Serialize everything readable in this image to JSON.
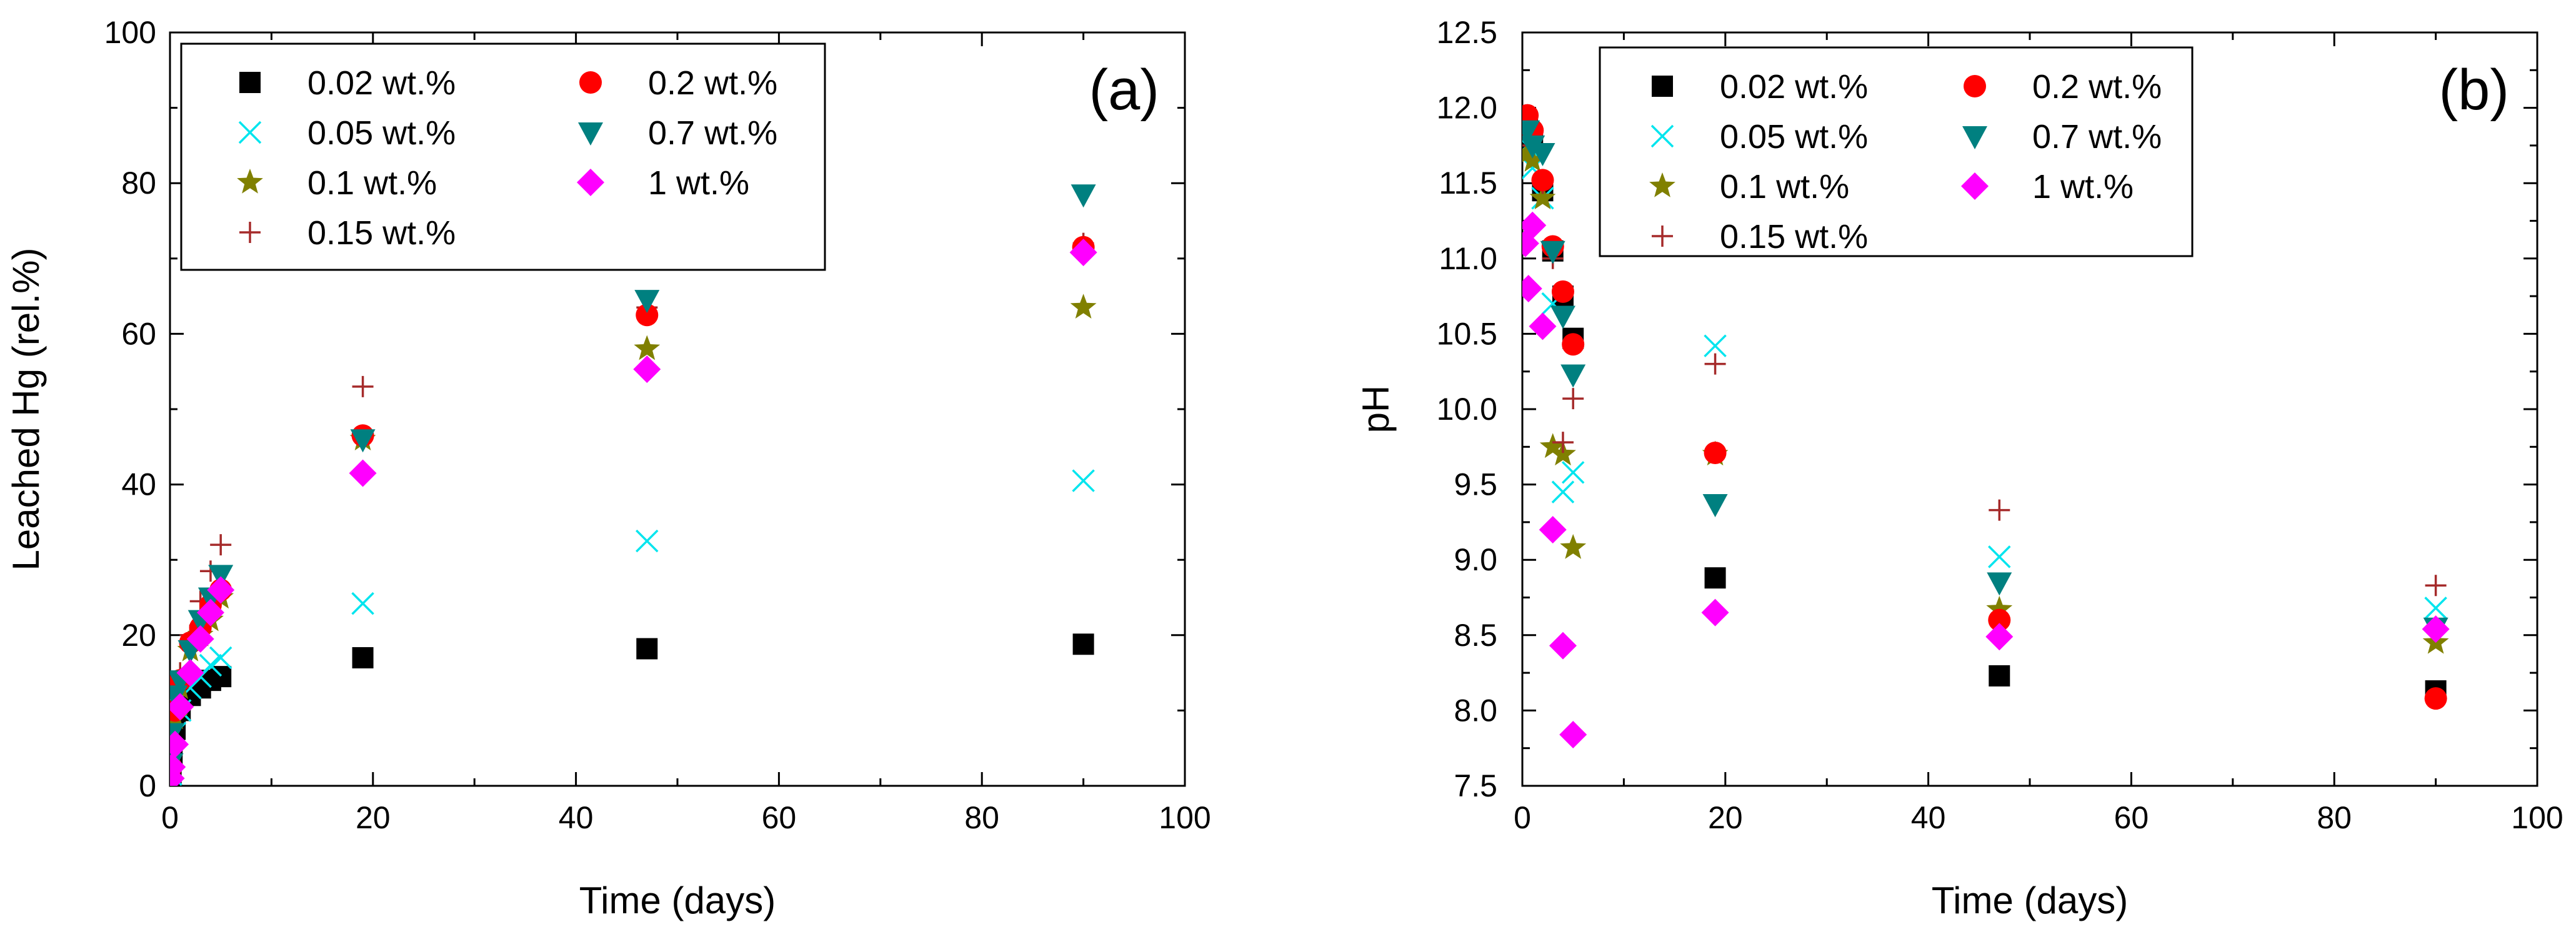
{
  "chart_data": [
    {
      "type": "scatter",
      "panel_label": "(a)",
      "xlabel": "Time (days)",
      "ylabel": "Leached Hg (rel.%)",
      "xlim": [
        0,
        100
      ],
      "ylim": [
        0,
        100
      ],
      "xticks": [
        0,
        20,
        40,
        60,
        80,
        100
      ],
      "yticks": [
        0,
        20,
        40,
        60,
        80,
        100
      ],
      "xtick_labels": [
        "0",
        "20",
        "40",
        "60",
        "80",
        "100"
      ],
      "ytick_labels": [
        "0",
        "20",
        "40",
        "60",
        "80",
        "100"
      ],
      "legend_position": "top-left",
      "series": [
        {
          "name": "0.02 wt.%",
          "marker": "square",
          "color": "#000000",
          "x": [
            0.1,
            0.2,
            0.5,
            1,
            2,
            3,
            4,
            5,
            19,
            47,
            90
          ],
          "y": [
            1.5,
            3.5,
            7.5,
            10,
            12,
            13,
            14,
            14.5,
            17,
            18.2,
            18.8
          ]
        },
        {
          "name": "0.05 wt.%",
          "marker": "x",
          "color": "#00e5ee",
          "x": [
            0.1,
            0.2,
            0.5,
            1,
            2,
            3,
            4,
            5,
            19,
            47,
            90
          ],
          "y": [
            1.5,
            4,
            7,
            10,
            13,
            14.5,
            16,
            17,
            24.2,
            32.5,
            40.5
          ]
        },
        {
          "name": "0.1 wt.%",
          "marker": "star",
          "color": "#808000",
          "x": [
            0.1,
            0.2,
            0.5,
            1,
            2,
            3,
            4,
            5,
            19,
            47,
            90
          ],
          "y": [
            2,
            5,
            9,
            13,
            18,
            20,
            22,
            25,
            46,
            58,
            63.5
          ]
        },
        {
          "name": "0.15 wt.%",
          "marker": "plus",
          "color": "#a52a2a",
          "x": [
            0.1,
            0.2,
            0.5,
            1,
            2,
            3,
            4,
            5,
            19,
            47,
            90
          ],
          "y": [
            2.5,
            6,
            11,
            15,
            20,
            24.5,
            28.5,
            32,
            53,
            63.5,
            72
          ]
        },
        {
          "name": "0.2 wt.%",
          "marker": "circle",
          "color": "#ff0000",
          "x": [
            0.1,
            0.2,
            0.5,
            1,
            2,
            3,
            4,
            5,
            19,
            47,
            90
          ],
          "y": [
            2.5,
            5.5,
            10,
            14,
            19,
            21,
            24,
            26,
            46.5,
            62.5,
            71.5
          ]
        },
        {
          "name": "0.7 wt.%",
          "marker": "triangle-down",
          "color": "#008080",
          "x": [
            0.1,
            0.2,
            0.5,
            1,
            2,
            3,
            4,
            5,
            19,
            47,
            90
          ],
          "y": [
            3,
            7,
            12,
            14,
            18,
            22,
            25,
            28,
            46,
            64.5,
            78.5
          ]
        },
        {
          "name": "1 wt.%",
          "marker": "diamond",
          "color": "#ff00ff",
          "x": [
            0.1,
            0.2,
            0.5,
            1,
            2,
            3,
            4,
            5,
            19,
            47,
            90
          ],
          "y": [
            1,
            2.5,
            5.5,
            10.5,
            15,
            19.5,
            23,
            26,
            41.5,
            55.3,
            70.8
          ]
        }
      ]
    },
    {
      "type": "scatter",
      "panel_label": "(b)",
      "xlabel": "Time (days)",
      "ylabel": "pH",
      "xlim": [
        0,
        100
      ],
      "ylim": [
        7.5,
        12.5
      ],
      "xticks": [
        0,
        20,
        40,
        60,
        80,
        100
      ],
      "yticks": [
        7.5,
        8.0,
        8.5,
        9.0,
        9.5,
        10.0,
        10.5,
        11.0,
        11.5,
        12.0,
        12.5
      ],
      "xtick_labels": [
        "0",
        "20",
        "40",
        "60",
        "80",
        "100"
      ],
      "ytick_labels": [
        "7.5",
        "8.0",
        "8.5",
        "9.0",
        "9.5",
        "10.0",
        "10.5",
        "11.0",
        "11.5",
        "12.0",
        "12.5"
      ],
      "legend_position": "top",
      "series": [
        {
          "name": "0.02 wt.%",
          "marker": "square",
          "color": "#000000",
          "x": [
            0.5,
            1,
            2,
            3,
            4,
            5,
            19,
            47,
            90
          ],
          "y": [
            11.9,
            11.8,
            11.45,
            11.05,
            10.75,
            10.47,
            8.88,
            8.23,
            8.13
          ]
        },
        {
          "name": "0.05 wt.%",
          "marker": "x",
          "color": "#00e5ee",
          "x": [
            0.5,
            1,
            2,
            3,
            4,
            5,
            19,
            47,
            90
          ],
          "y": [
            11.75,
            11.6,
            11.4,
            10.7,
            9.45,
            9.58,
            10.42,
            9.02,
            8.68
          ]
        },
        {
          "name": "0.1 wt.%",
          "marker": "star",
          "color": "#808000",
          "x": [
            0.5,
            1,
            2,
            3,
            4,
            5,
            19,
            47,
            90
          ],
          "y": [
            11.7,
            11.65,
            11.4,
            9.75,
            9.7,
            9.08,
            9.7,
            8.67,
            8.45
          ]
        },
        {
          "name": "0.15 wt.%",
          "marker": "plus",
          "color": "#a52a2a",
          "x": [
            0.5,
            1,
            2,
            3,
            4,
            5,
            19,
            47,
            90
          ],
          "y": [
            11.85,
            11.75,
            11.5,
            11.0,
            9.78,
            10.07,
            10.3,
            9.33,
            8.83
          ]
        },
        {
          "name": "0.2 wt.%",
          "marker": "circle",
          "color": "#ff0000",
          "x": [
            0.5,
            1,
            2,
            3,
            4,
            5,
            19,
            47,
            90
          ],
          "y": [
            11.95,
            11.85,
            11.52,
            11.08,
            10.78,
            10.43,
            9.71,
            8.6,
            8.08
          ]
        },
        {
          "name": "0.7 wt.%",
          "marker": "triangle-down",
          "color": "#008080",
          "x": [
            0.5,
            1,
            2,
            3,
            4,
            5,
            19,
            47,
            90
          ],
          "y": [
            11.85,
            11.75,
            11.7,
            11.05,
            10.62,
            10.23,
            9.37,
            8.85,
            8.55
          ]
        },
        {
          "name": "1 wt.%",
          "marker": "diamond",
          "color": "#ff00ff",
          "x": [
            0.3,
            0.6,
            1,
            2,
            3,
            4,
            5,
            19,
            47,
            90
          ],
          "y": [
            11.1,
            10.8,
            11.22,
            10.55,
            9.2,
            8.43,
            7.84,
            8.65,
            8.49,
            8.54
          ]
        }
      ]
    }
  ]
}
